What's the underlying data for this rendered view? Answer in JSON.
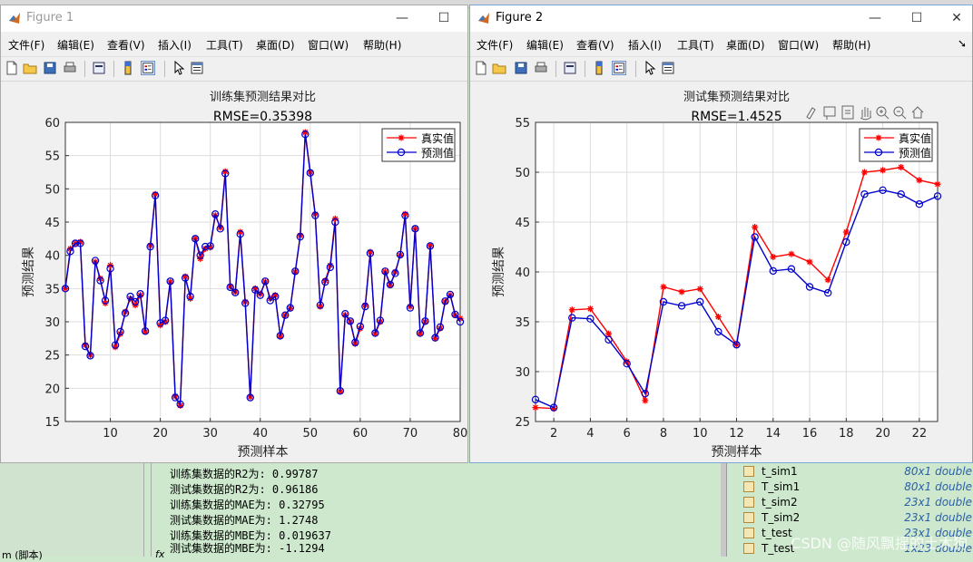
{
  "colors": {
    "series_true": "#ff0000",
    "series_pred": "#0000cc",
    "grid": "#dddddd"
  },
  "fig1": {
    "title": "Figure 1",
    "menu": [
      "文件(F)",
      "编辑(E)",
      "查看(V)",
      "插入(I)",
      "工具(T)",
      "桌面(D)",
      "窗口(W)",
      "帮助(H)"
    ],
    "minimize": "—",
    "maximize": "☐"
  },
  "fig2": {
    "title": "Figure 2",
    "menu": [
      "文件(F)",
      "编辑(E)",
      "查看(V)",
      "插入(I)",
      "工具(T)",
      "桌面(D)",
      "窗口(W)",
      "帮助(H)"
    ],
    "minimize": "—",
    "maximize": "☐",
    "close": "✕",
    "menu_more": "➘"
  },
  "toolbar_icons": [
    "new-file-icon",
    "open-folder-icon",
    "save-icon",
    "print-icon",
    "print-preview-icon",
    "colorbar-icon",
    "legend-icon",
    "pointer-icon",
    "property-inspector-icon"
  ],
  "axes_toolbar_icons": [
    "brush-icon",
    "data-tip-icon",
    "save-axes-icon",
    "pan-icon",
    "zoom-in-icon",
    "zoom-out-icon",
    "home-icon"
  ],
  "command_window": {
    "lines": [
      "训练集数据的R2为: 0.99787",
      "测试集数据的R2为: 0.96186",
      "训练集数据的MAE为: 0.32795",
      "测试集数据的MAE为: 1.2748",
      "训练集数据的MBE为: 0.019637",
      "测试集数据的MBE为: -1.1294"
    ],
    "left_label": "m (脚本)",
    "prompt": "fx"
  },
  "workspace": [
    {
      "name": "t_sim1",
      "size": "80x1 double"
    },
    {
      "name": "T_sim1",
      "size": "80x1 double"
    },
    {
      "name": "t_sim2",
      "size": "23x1 double"
    },
    {
      "name": "T_sim2",
      "size": "23x1 double"
    },
    {
      "name": "t_test",
      "size": "23x1 double"
    },
    {
      "name": "T_test",
      "size": "1x23 double"
    }
  ],
  "watermark": "CSDN @随风飘摇的土木狗",
  "chart_data": [
    {
      "type": "line",
      "title": "训练集预测结果对比",
      "subtitle": "RMSE=0.35398",
      "xlabel": "预测样本",
      "ylabel": "预测结果",
      "xlim": [
        1,
        80
      ],
      "ylim": [
        15,
        60
      ],
      "xticks": [
        10,
        20,
        30,
        40,
        50,
        60,
        70,
        80
      ],
      "yticks": [
        15,
        20,
        25,
        30,
        35,
        40,
        45,
        50,
        55,
        60
      ],
      "grid": true,
      "legend_position": "top-right",
      "x": [
        1,
        2,
        3,
        4,
        5,
        6,
        7,
        8,
        9,
        10,
        11,
        12,
        13,
        14,
        15,
        16,
        17,
        18,
        19,
        20,
        21,
        22,
        23,
        24,
        25,
        26,
        27,
        28,
        29,
        30,
        31,
        32,
        33,
        34,
        35,
        36,
        37,
        38,
        39,
        40,
        41,
        42,
        43,
        44,
        45,
        46,
        47,
        48,
        49,
        50,
        51,
        52,
        53,
        54,
        55,
        56,
        57,
        58,
        59,
        60,
        61,
        62,
        63,
        64,
        65,
        66,
        67,
        68,
        69,
        70,
        71,
        72,
        73,
        74,
        75,
        76,
        77,
        78,
        79,
        80
      ],
      "series": [
        {
          "name": "真实值",
          "marker": "asterisk",
          "color": "#ff0000",
          "values": [
            35.0,
            41.0,
            41.8,
            42.0,
            26.5,
            25.0,
            39.0,
            36.5,
            32.8,
            38.5,
            26.2,
            28.2,
            31.5,
            33.5,
            32.5,
            34.0,
            28.5,
            41.5,
            49.2,
            29.5,
            30.0,
            36.0,
            18.8,
            17.4,
            36.8,
            33.5,
            42.5,
            39.5,
            41.0,
            41.2,
            46.0,
            44.2,
            52.6,
            35.3,
            34.5,
            43.5,
            33.0,
            18.7,
            35.0,
            34.2,
            36.0,
            33.5,
            34.0,
            27.8,
            31.0,
            32.0,
            37.5,
            43.0,
            58.5,
            52.5,
            46.2,
            32.3,
            36.2,
            38.5,
            45.5,
            19.5,
            31.0,
            30.0,
            26.7,
            29.0,
            32.5,
            40.5,
            28.2,
            30.0,
            37.5,
            35.5,
            37.5,
            40.0,
            46.2,
            32.3,
            44.0,
            28.2,
            30.0,
            41.5,
            27.5,
            29.0,
            33.0,
            34.0,
            31.0,
            30.5
          ]
        },
        {
          "name": "预测值",
          "marker": "circle",
          "color": "#0000cc",
          "values": [
            35.0,
            40.6,
            41.8,
            41.8,
            26.3,
            24.9,
            39.2,
            36.2,
            33.2,
            38.0,
            26.5,
            28.5,
            31.3,
            33.8,
            33.0,
            34.2,
            28.6,
            41.3,
            49.0,
            29.8,
            30.2,
            36.1,
            18.6,
            17.6,
            36.6,
            33.8,
            42.5,
            40.0,
            41.3,
            41.4,
            46.2,
            44.0,
            52.3,
            35.2,
            34.4,
            43.2,
            32.8,
            18.6,
            34.8,
            34.0,
            36.1,
            33.2,
            33.8,
            27.9,
            31.0,
            32.1,
            37.6,
            42.8,
            58.2,
            52.4,
            46.0,
            32.5,
            36.0,
            38.2,
            45.0,
            19.6,
            31.2,
            30.1,
            26.9,
            29.3,
            32.3,
            40.3,
            28.3,
            30.2,
            37.6,
            35.6,
            37.3,
            40.1,
            46.0,
            32.1,
            44.0,
            28.3,
            30.1,
            41.4,
            27.6,
            29.2,
            33.1,
            34.1,
            31.1,
            30.0
          ]
        }
      ]
    },
    {
      "type": "line",
      "title": "测试集预测结果对比",
      "subtitle": "RMSE=1.4525",
      "xlabel": "预测样本",
      "ylabel": "预测结果",
      "xlim": [
        1,
        23
      ],
      "ylim": [
        25,
        55
      ],
      "xticks": [
        2,
        4,
        6,
        8,
        10,
        12,
        14,
        16,
        18,
        20,
        22
      ],
      "yticks": [
        25,
        30,
        35,
        40,
        45,
        50,
        55
      ],
      "grid": true,
      "legend_position": "top-right",
      "x": [
        1,
        2,
        3,
        4,
        5,
        6,
        7,
        8,
        9,
        10,
        11,
        12,
        13,
        14,
        15,
        16,
        17,
        18,
        19,
        20,
        21,
        22,
        23
      ],
      "series": [
        {
          "name": "真实值",
          "marker": "asterisk",
          "color": "#ff0000",
          "values": [
            26.4,
            26.3,
            36.2,
            36.3,
            33.8,
            31.0,
            27.1,
            38.5,
            38.0,
            38.3,
            35.5,
            32.7,
            44.5,
            41.5,
            41.8,
            41.0,
            39.2,
            44.0,
            50.0,
            50.2,
            50.5,
            49.2,
            48.8
          ]
        },
        {
          "name": "预测值",
          "marker": "circle",
          "color": "#0000cc",
          "values": [
            27.2,
            26.4,
            35.4,
            35.3,
            33.2,
            30.8,
            27.8,
            37.0,
            36.6,
            37.0,
            34.0,
            32.7,
            43.5,
            40.1,
            40.3,
            38.5,
            37.9,
            43.0,
            47.8,
            48.2,
            47.8,
            46.8,
            47.6
          ]
        }
      ]
    }
  ]
}
